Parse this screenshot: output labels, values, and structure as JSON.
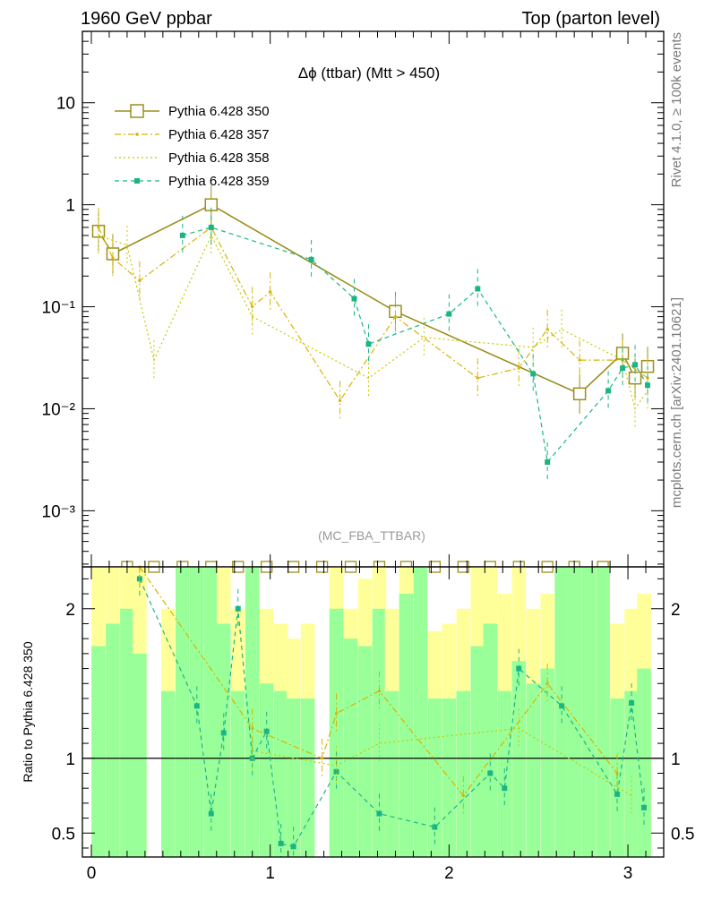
{
  "header": {
    "left_title": "1960 GeV ppbar",
    "right_title": "Top (parton level)"
  },
  "side_labels": {
    "rivet": "Rivet 4.1.0, ≥ 100k events",
    "mcplots": "mcplots.cern.ch [arXiv:2401.10621]"
  },
  "watermark": "(MC_FBA_TTBAR)",
  "colors": {
    "olive": "#9b8f1e",
    "orange": "#d9b400",
    "yellow": "#c8c800",
    "teal": "#1bb585",
    "band_yellow": "#ffff99",
    "band_green": "#99ff99"
  },
  "chart_data": [
    {
      "type": "line",
      "title": "Δϕ (ttbar) (Mtt > 450)",
      "xlabel": "",
      "ylabel": "",
      "xlim": [
        -0.05,
        3.2
      ],
      "ylim_log10": [
        -3.55,
        1.7
      ],
      "yscale": "log",
      "y_tick_labels": [
        "10",
        "1",
        "10⁻¹",
        "10⁻²",
        "10⁻³"
      ],
      "legend": {
        "position": "top-left",
        "entries": [
          "Pythia 6.428 350",
          "Pythia 6.428 357",
          "Pythia 6.428 358",
          "Pythia 6.428 359"
        ]
      },
      "series": [
        {
          "name": "Pythia 6.428 350",
          "style": "solid-open-square",
          "points": [
            {
              "x": 0.04,
              "y": 0.55
            },
            {
              "x": 0.12,
              "y": 0.33
            },
            {
              "x": 0.67,
              "y": 1.0
            },
            {
              "x": 1.7,
              "y": 0.09
            },
            {
              "x": 2.73,
              "y": 0.014
            },
            {
              "x": 2.97,
              "y": 0.035
            },
            {
              "x": 3.04,
              "y": 0.02
            },
            {
              "x": 3.11,
              "y": 0.026
            }
          ]
        },
        {
          "name": "Pythia 6.428 357",
          "style": "dash-dot",
          "points": [
            {
              "x": 0.04,
              "y": 0.6
            },
            {
              "x": 0.12,
              "y": 0.3
            },
            {
              "x": 0.27,
              "y": 0.18
            },
            {
              "x": 0.67,
              "y": 0.6
            },
            {
              "x": 0.9,
              "y": 0.1
            },
            {
              "x": 1.0,
              "y": 0.14
            },
            {
              "x": 1.39,
              "y": 0.012
            },
            {
              "x": 1.7,
              "y": 0.08
            },
            {
              "x": 2.16,
              "y": 0.02
            },
            {
              "x": 2.39,
              "y": 0.025
            },
            {
              "x": 2.55,
              "y": 0.06
            },
            {
              "x": 2.73,
              "y": 0.03
            },
            {
              "x": 2.97,
              "y": 0.03
            },
            {
              "x": 3.11,
              "y": 0.02
            }
          ]
        },
        {
          "name": "Pythia 6.428 358",
          "style": "dotted",
          "points": [
            {
              "x": 0.04,
              "y": 0.5
            },
            {
              "x": 0.2,
              "y": 0.4
            },
            {
              "x": 0.35,
              "y": 0.03
            },
            {
              "x": 0.67,
              "y": 0.5
            },
            {
              "x": 0.9,
              "y": 0.08
            },
            {
              "x": 1.55,
              "y": 0.02
            },
            {
              "x": 1.86,
              "y": 0.05
            },
            {
              "x": 2.47,
              "y": 0.04
            },
            {
              "x": 2.63,
              "y": 0.06
            },
            {
              "x": 2.97,
              "y": 0.03
            },
            {
              "x": 3.04,
              "y": 0.01
            },
            {
              "x": 3.11,
              "y": 0.015
            }
          ]
        },
        {
          "name": "Pythia 6.428 359",
          "style": "dashed-filled-square",
          "points": [
            {
              "x": 0.51,
              "y": 0.5
            },
            {
              "x": 0.67,
              "y": 0.6
            },
            {
              "x": 1.23,
              "y": 0.29
            },
            {
              "x": 1.47,
              "y": 0.12
            },
            {
              "x": 1.55,
              "y": 0.043
            },
            {
              "x": 2.0,
              "y": 0.085
            },
            {
              "x": 2.16,
              "y": 0.15
            },
            {
              "x": 2.47,
              "y": 0.022
            },
            {
              "x": 2.55,
              "y": 0.003
            },
            {
              "x": 2.89,
              "y": 0.015
            },
            {
              "x": 2.97,
              "y": 0.025
            },
            {
              "x": 3.04,
              "y": 0.027
            },
            {
              "x": 3.11,
              "y": 0.017
            }
          ]
        }
      ]
    },
    {
      "type": "line",
      "title": "",
      "xlabel": "",
      "ylabel": "Ratio to Pythia 6.428 350",
      "xlim": [
        -0.05,
        3.2
      ],
      "ylim": [
        0.34,
        2.28
      ],
      "x_tick_labels": [
        "0",
        "1",
        "2",
        "3"
      ],
      "y_tick_labels": [
        "2",
        "1",
        "0.5"
      ],
      "reference_value": 1,
      "bands": {
        "bin_width": 0.078,
        "bin_centers": [
          0.04,
          0.12,
          0.2,
          0.27,
          0.35,
          0.43,
          0.51,
          0.59,
          0.67,
          0.74,
          0.82,
          0.9,
          0.98,
          1.06,
          1.13,
          1.21,
          1.29,
          1.37,
          1.45,
          1.53,
          1.61,
          1.68,
          1.76,
          1.84,
          1.92,
          2.0,
          2.08,
          2.16,
          2.23,
          2.31,
          2.39,
          2.47,
          2.55,
          2.63,
          2.7,
          2.78,
          2.86,
          2.94,
          3.02,
          3.09
        ],
        "outer_high": [
          2.28,
          2.28,
          2.28,
          2.28,
          null,
          2.0,
          2.28,
          2.28,
          2.28,
          2.28,
          2.0,
          2.28,
          2.0,
          1.9,
          1.8,
          1.9,
          null,
          2.28,
          2.0,
          2.2,
          2.28,
          2.0,
          2.28,
          2.28,
          1.85,
          1.9,
          2.0,
          2.28,
          2.28,
          2.1,
          2.28,
          2.0,
          2.1,
          2.28,
          2.28,
          2.28,
          2.28,
          1.9,
          2.0,
          2.1
        ],
        "outer_low": [
          0.34,
          0.34,
          0.34,
          0.34,
          null,
          0.34,
          0.34,
          0.34,
          0.34,
          0.34,
          0.34,
          0.34,
          0.34,
          0.34,
          0.34,
          0.34,
          null,
          0.34,
          0.34,
          0.34,
          0.34,
          0.34,
          0.34,
          0.34,
          0.34,
          0.34,
          0.34,
          0.34,
          0.34,
          0.34,
          0.34,
          0.34,
          0.34,
          0.34,
          0.34,
          0.34,
          0.34,
          0.34,
          0.34,
          0.34
        ],
        "inner_high": [
          1.75,
          1.9,
          2.0,
          1.7,
          null,
          1.45,
          2.28,
          2.28,
          2.28,
          1.9,
          1.45,
          2.28,
          1.5,
          1.45,
          1.4,
          1.4,
          null,
          2.0,
          1.8,
          1.75,
          2.0,
          1.45,
          2.1,
          2.28,
          1.4,
          1.4,
          1.45,
          1.75,
          1.9,
          1.45,
          1.65,
          1.5,
          1.6,
          2.28,
          2.28,
          2.28,
          2.28,
          1.4,
          1.45,
          1.6
        ],
        "inner_low": [
          0.34,
          0.34,
          0.34,
          0.34,
          null,
          0.34,
          0.34,
          0.34,
          0.34,
          0.34,
          0.34,
          0.34,
          0.34,
          0.34,
          0.34,
          0.34,
          null,
          0.34,
          0.34,
          0.34,
          0.34,
          0.34,
          0.34,
          0.34,
          0.34,
          0.34,
          0.34,
          0.34,
          0.34,
          0.34,
          0.34,
          0.34,
          0.34,
          0.34,
          0.34,
          0.34,
          0.34,
          0.34,
          0.34,
          0.34
        ]
      },
      "series": [
        {
          "name": "Pythia 6.428 359",
          "style": "dashed-filled-square",
          "points": [
            {
              "x": 0.27,
              "y": 2.2
            },
            {
              "x": 0.59,
              "y": 1.35
            },
            {
              "x": 0.67,
              "y": 0.63
            },
            {
              "x": 0.74,
              "y": 1.17
            },
            {
              "x": 0.82,
              "y": 2.0
            },
            {
              "x": 0.9,
              "y": 1.0
            },
            {
              "x": 0.98,
              "y": 1.18
            },
            {
              "x": 1.06,
              "y": 0.43
            },
            {
              "x": 1.13,
              "y": 0.41
            },
            {
              "x": 1.37,
              "y": 0.91
            },
            {
              "x": 1.61,
              "y": 0.63
            },
            {
              "x": 1.92,
              "y": 0.54
            },
            {
              "x": 2.23,
              "y": 0.9
            },
            {
              "x": 2.31,
              "y": 0.8
            },
            {
              "x": 2.39,
              "y": 1.6
            },
            {
              "x": 2.63,
              "y": 1.35
            },
            {
              "x": 2.94,
              "y": 0.76
            },
            {
              "x": 3.02,
              "y": 1.37
            },
            {
              "x": 3.09,
              "y": 0.67
            }
          ]
        },
        {
          "name": "Pythia 6.428 357",
          "style": "dash-dot",
          "points": [
            {
              "x": 0.27,
              "y": 2.28
            },
            {
              "x": 0.9,
              "y": 1.2
            },
            {
              "x": 1.29,
              "y": 1.0
            },
            {
              "x": 1.37,
              "y": 1.3
            },
            {
              "x": 1.61,
              "y": 1.45
            },
            {
              "x": 2.08,
              "y": 0.75
            },
            {
              "x": 2.55,
              "y": 1.5
            },
            {
              "x": 2.94,
              "y": 0.9
            }
          ]
        },
        {
          "name": "Pythia 6.428 358",
          "style": "dotted",
          "points": [
            {
              "x": 0.9,
              "y": 1.05
            },
            {
              "x": 1.37,
              "y": 0.95
            },
            {
              "x": 1.61,
              "y": 1.1
            },
            {
              "x": 2.39,
              "y": 1.2
            },
            {
              "x": 3.02,
              "y": 0.75
            }
          ]
        }
      ]
    }
  ]
}
